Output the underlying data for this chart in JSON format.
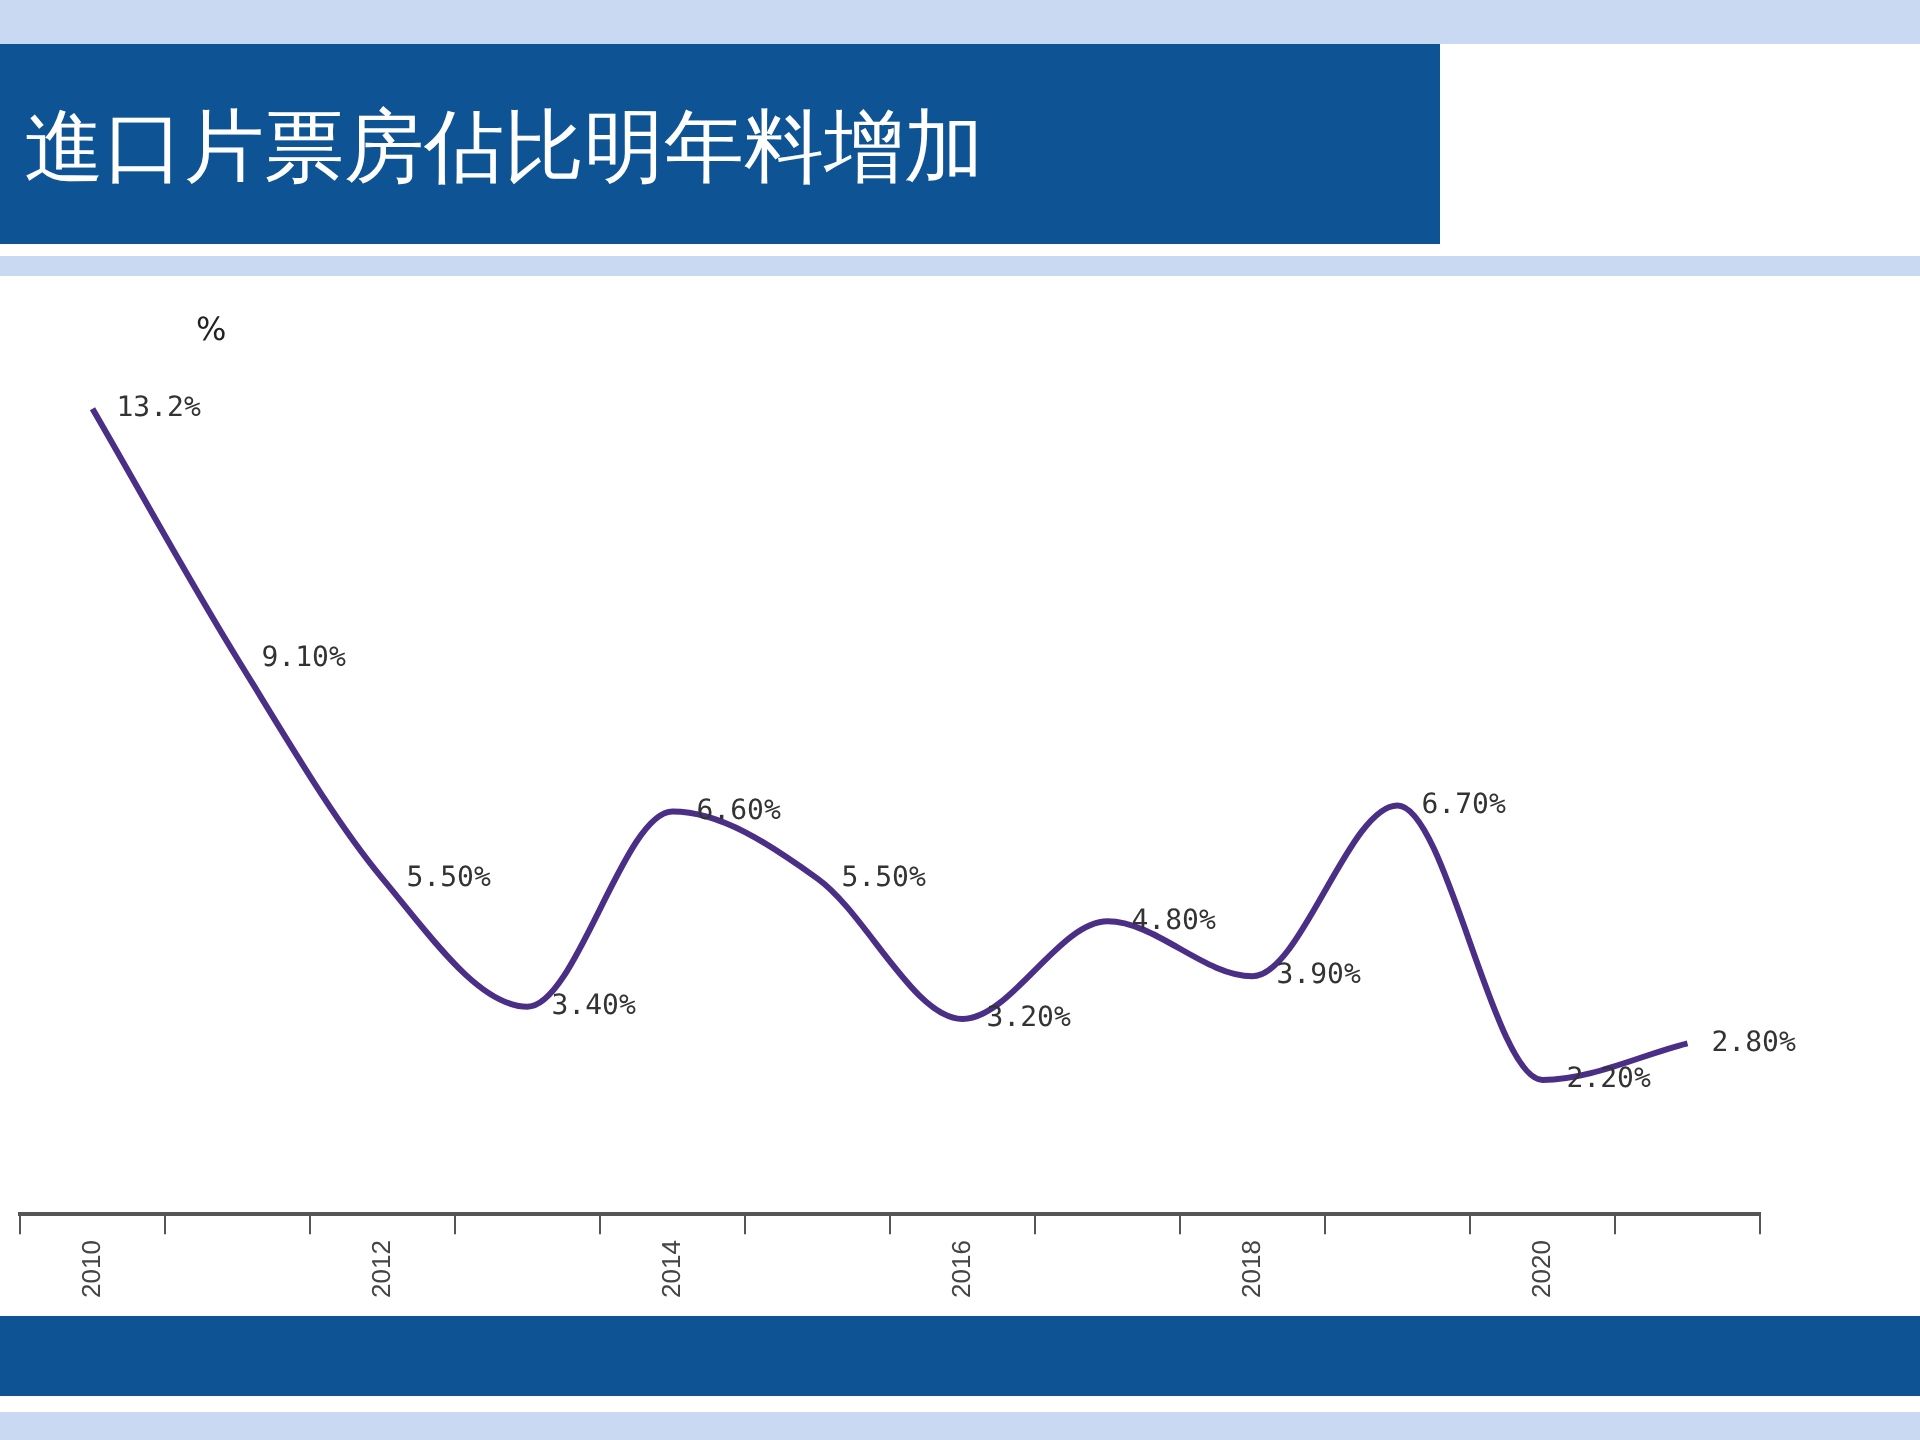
{
  "chart_data": {
    "type": "line",
    "title": "進口片票房佔比明年料增加",
    "annotations": [
      "%"
    ],
    "categories": [
      "2010",
      null,
      "2012",
      null,
      "2014",
      null,
      "2016",
      null,
      "2018",
      null,
      "2020",
      null
    ],
    "series": [
      {
        "color": "#4b2f86",
        "values": [
          13.2,
          9.1,
          5.5,
          3.4,
          6.6,
          5.5,
          3.2,
          4.8,
          3.9,
          6.7,
          2.2,
          2.8
        ],
        "value_labels": [
          "13.2%",
          "9.10%",
          "5.50%",
          "3.40%",
          "6.60%",
          "5.50%",
          "3.20%",
          "4.80%",
          "3.90%",
          "6.70%",
          "2.20%",
          "2.80%"
        ]
      }
    ],
    "tick_labels": "x",
    "grid": false,
    "legend": false,
    "marker": "none",
    "line_style": "solid"
  }
}
